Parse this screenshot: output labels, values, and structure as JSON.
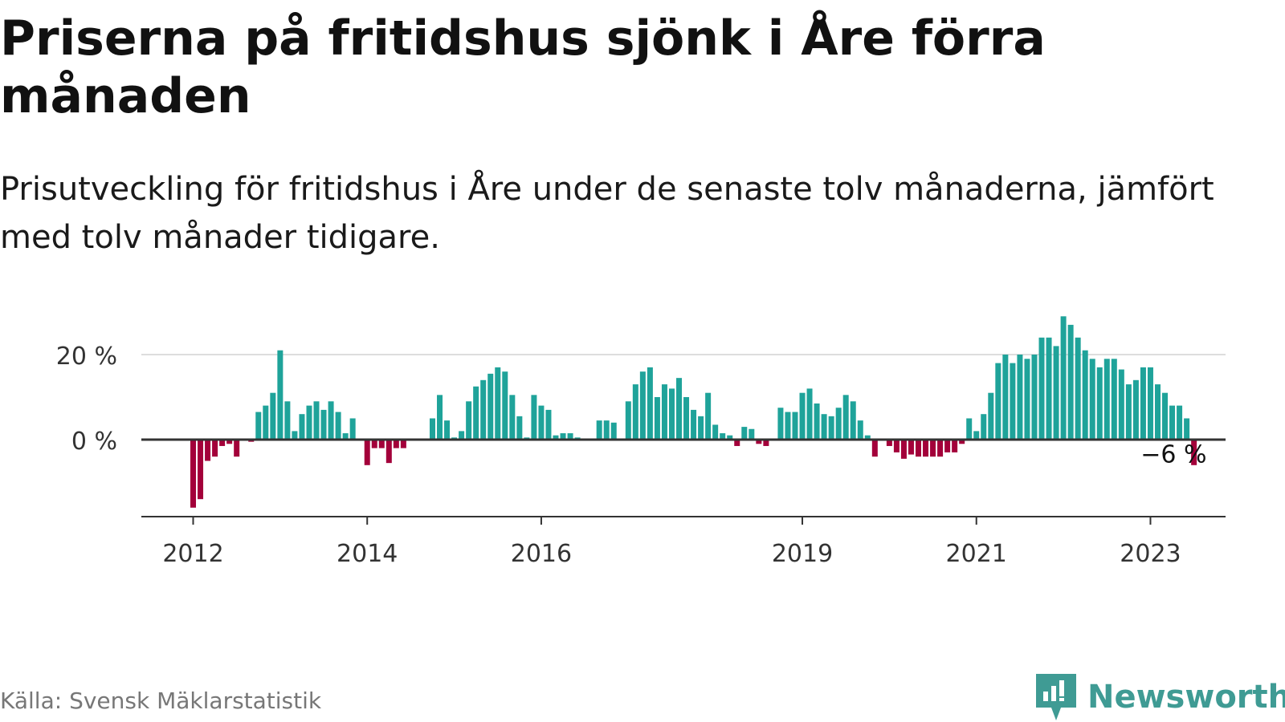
{
  "title": "Priserna på fritidshus sjönk i Åre förra månaden",
  "subtitle": "Prisutveckling för fritidshus i Åre under de senaste tolv månaderna, jämfört med tolv månader tidigare.",
  "source": "Källa: Svensk Mäklarstatistik",
  "brand": "Newsworthy",
  "colors": {
    "positive": "#1fa39a",
    "negative": "#a3003a",
    "brand": "#3f9b94",
    "grid": "#dddddd",
    "axis": "#333333"
  },
  "chart_data": {
    "type": "bar",
    "title": "Priserna på fritidshus sjönk i Åre förra månaden",
    "subtitle": "Prisutveckling för fritidshus i Åre under de senaste tolv månaderna, jämfört med tolv månader tidigare.",
    "xlabel": "",
    "ylabel": "",
    "ylim": [
      -18,
      30
    ],
    "y_ticks": [
      0,
      20
    ],
    "y_tick_labels": [
      "0 %",
      "20 %"
    ],
    "grid": true,
    "x_ticks": [
      "2012",
      "2014",
      "2016",
      "2019",
      "2021",
      "2023"
    ],
    "x_tick_positions": [
      0,
      24,
      48,
      84,
      108,
      132
    ],
    "annotation": {
      "index": 135,
      "label": "−6 %"
    },
    "values": [
      -16,
      -14,
      -5,
      -4,
      -1.5,
      -1,
      -4,
      0,
      -0.5,
      6.5,
      8,
      11,
      21,
      9,
      2,
      6,
      8,
      9,
      7,
      9,
      6.5,
      1.5,
      5,
      null,
      -6,
      -2,
      -2,
      -5.5,
      -2,
      -2,
      null,
      null,
      null,
      5,
      10.5,
      4.5,
      0.5,
      2,
      9,
      12.5,
      14,
      15.5,
      17,
      16,
      10.5,
      5.5,
      0.5,
      10.5,
      8,
      7,
      1,
      1.5,
      1.5,
      0.5,
      null,
      null,
      4.5,
      4.5,
      4,
      null,
      9,
      13,
      16,
      17,
      10,
      13,
      12,
      14.5,
      10,
      7,
      5.5,
      11,
      3.5,
      1.5,
      1,
      -1.5,
      3,
      2.5,
      -1,
      -1.5,
      null,
      7.5,
      6.5,
      6.5,
      11,
      12,
      8.5,
      6,
      5.5,
      7.5,
      10.5,
      9,
      4.5,
      1,
      -4,
      null,
      -1.5,
      -3,
      -4.5,
      -3.5,
      -4,
      -4,
      -4,
      -4,
      -3,
      -3,
      -1,
      5,
      2,
      6,
      11,
      18,
      20,
      18,
      20,
      19,
      20,
      24,
      24,
      22,
      29,
      27,
      24,
      21,
      19,
      17,
      19,
      19,
      16.5,
      13,
      14,
      17,
      17,
      13,
      11,
      8,
      8,
      5,
      -6
    ]
  }
}
